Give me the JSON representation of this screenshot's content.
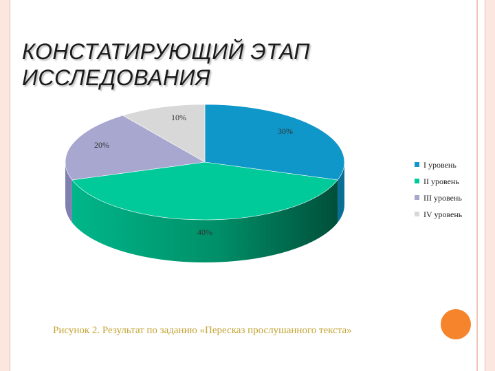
{
  "title": {
    "line1": "КОНСТАТИРУЮЩИЙ ЭТАП",
    "line2": "ИССЛЕДОВАНИЯ"
  },
  "caption": "Рисунок 2. Результат по заданию «Пересказ прослушанного текста»",
  "chart_data": {
    "type": "pie",
    "three_d": true,
    "categories": [
      "I уровень",
      "II уровень",
      "III уровень",
      "IV уровень"
    ],
    "values": [
      30,
      40,
      20,
      10
    ],
    "data_labels": [
      "30%",
      "40%",
      "20%",
      "10%"
    ],
    "colors": [
      "#0f97c9",
      "#00c99a",
      "#a7a7d0",
      "#d8d8d8"
    ],
    "side_colors": [
      "#0a6f94",
      "#009a72",
      "#7f7fb0",
      "#a9a9a9"
    ],
    "legend_position": "right"
  }
}
